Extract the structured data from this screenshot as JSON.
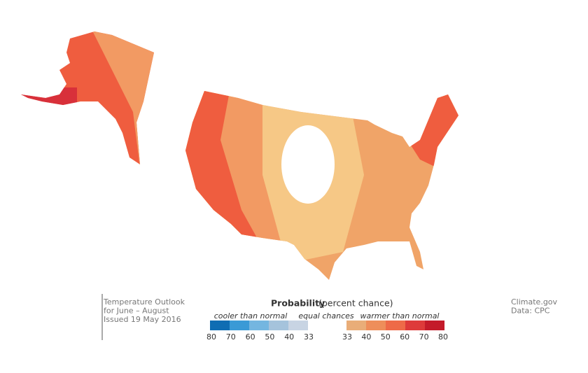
{
  "caption": {
    "lines": [
      "Temperature Outlook",
      "for June – August",
      "Issued 19 May 2016"
    ]
  },
  "credit": {
    "lines": [
      "Climate.gov",
      "Data: CPC"
    ]
  },
  "legend": {
    "title": "Probability",
    "subtitle": "(percent chance)",
    "cooler": "cooler than normal",
    "equal": "equal chances",
    "warmer": "warmer than normal",
    "cool_colors": [
      "#0f6db3",
      "#3a9ad6",
      "#74b6e0",
      "#a5c3dc",
      "#c8d4e3"
    ],
    "warm_colors": [
      "#e9ad78",
      "#ee8e5a",
      "#ee6a48",
      "#de3a3a",
      "#c41b2a"
    ],
    "cool_ticks": [
      80,
      70,
      60,
      50,
      40,
      33
    ],
    "warm_ticks": [
      33,
      40,
      50,
      60,
      70,
      80
    ]
  }
}
